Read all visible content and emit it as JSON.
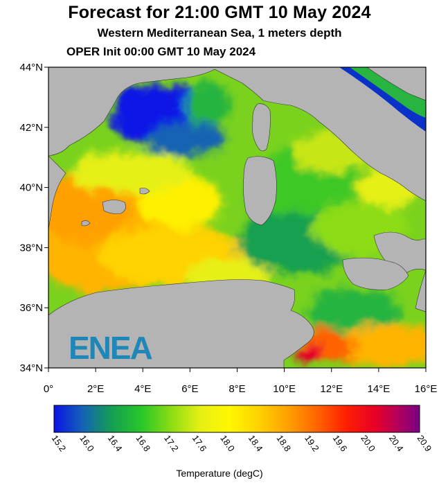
{
  "header": {
    "title": "Forecast for 21:00 GMT  10 May 2024",
    "subtitle": "Western Mediterranean Sea, 1 meters depth",
    "init": "OPER Init 00:00 GMT  10 May 2024"
  },
  "map": {
    "lat_ticks": [
      "44°N",
      "42°N",
      "40°N",
      "38°N",
      "36°N",
      "34°N"
    ],
    "lon_ticks": [
      "0°",
      "2°E",
      "4°E",
      "6°E",
      "8°E",
      "10°E",
      "12°E",
      "14°E",
      "16°E"
    ],
    "lat_range": [
      34,
      44
    ],
    "lon_range": [
      0,
      16
    ],
    "logo_text": "ENEA",
    "land_color": "#b4b4b4",
    "logo_color": "#1f86b8"
  },
  "colorbar": {
    "title": "Temperature (degC)",
    "labels": [
      "15.2",
      "16.0",
      "16.4",
      "16.8",
      "17.2",
      "17.6",
      "18.0",
      "18.4",
      "18.8",
      "19.2",
      "19.6",
      "20.0",
      "20.4",
      "20.9"
    ],
    "colors": [
      "#0a14e6",
      "#1464b4",
      "#14a050",
      "#28c828",
      "#8cdc14",
      "#e6f014",
      "#fff700",
      "#ffd200",
      "#ffa000",
      "#ff6400",
      "#ff1e00",
      "#e60028",
      "#b4005a",
      "#780082"
    ]
  }
}
